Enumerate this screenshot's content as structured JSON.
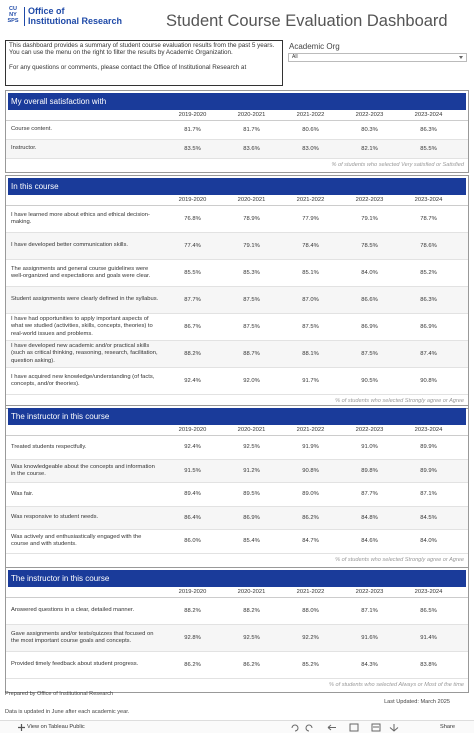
{
  "header": {
    "logo": [
      "CU",
      "NY",
      "SPS"
    ],
    "office": [
      "Office of",
      "Institutional Research"
    ],
    "title": "Student Course Evaluation Dashboard"
  },
  "intro": [
    "This dashboard provides a summary of student course evaluation results from the past 5 years. You can use the menu on the right to filter the results by Academic Organization.",
    "For any questions or comments, please contact the Office of Institutional Research at"
  ],
  "filter": {
    "label": "Academic Org",
    "value": "All"
  },
  "sections": [
    {
      "title": "My overall satisfaction with",
      "columns": [
        "2019-2020",
        "2020-2021",
        "2021-2022",
        "2022-2023",
        "2023-2024"
      ],
      "rows": [
        {
          "label": "Course content.",
          "values": [
            "81.7%",
            "81.7%",
            "80.6%",
            "80.3%",
            "86.3%"
          ]
        },
        {
          "label": "Instructor.",
          "values": [
            "83.5%",
            "83.6%",
            "83.0%",
            "82.1%",
            "85.5%"
          ]
        }
      ],
      "note": "% of students who selected Very  satisfied or Satisfied"
    },
    {
      "title": "In this course",
      "columns": [
        "2019-2020",
        "2020-2021",
        "2021-2022",
        "2022-2023",
        "2023-2024"
      ],
      "rows": [
        {
          "label": "I have learned more about ethics and ethical decision-making.",
          "values": [
            "76.8%",
            "78.9%",
            "77.9%",
            "79.1%",
            "78.7%"
          ]
        },
        {
          "label": "I have developed better communication skills.",
          "values": [
            "77.4%",
            "79.1%",
            "78.4%",
            "78.5%",
            "78.6%"
          ]
        },
        {
          "label": "The assignments and general course guidelines were well-organized and expectations and goals were clear.",
          "values": [
            "85.5%",
            "85.3%",
            "85.1%",
            "84.0%",
            "85.2%"
          ]
        },
        {
          "label": "Student assignments were clearly defined in the syllabus.",
          "values": [
            "87.7%",
            "87.5%",
            "87.0%",
            "86.6%",
            "86.3%"
          ]
        },
        {
          "label": "I have had opportunities to apply important aspects of what we studied (activities, skills, concepts, theories) to real-world issues and problems.",
          "values": [
            "86.7%",
            "87.5%",
            "87.5%",
            "86.9%",
            "86.9%"
          ]
        },
        {
          "label": "I have developed new academic and/or practical skills (such as critical thinking, reasoning, research, facilitation, question asking).",
          "values": [
            "88.2%",
            "88.7%",
            "88.1%",
            "87.5%",
            "87.4%"
          ]
        },
        {
          "label": "I have acquired new knowledge/understanding (of facts, concepts, and/or theories).",
          "values": [
            "92.4%",
            "92.0%",
            "91.7%",
            "90.5%",
            "90.8%"
          ]
        }
      ],
      "note": "% of students who selected Strongly agree or Agree"
    },
    {
      "title": "The instructor in this course",
      "columns": [
        "2019-2020",
        "2020-2021",
        "2021-2022",
        "2022-2023",
        "2023-2024"
      ],
      "rows": [
        {
          "label": "Treated students respectfully.",
          "values": [
            "92.4%",
            "92.5%",
            "91.9%",
            "91.0%",
            "89.9%"
          ]
        },
        {
          "label": "Was knowledgeable about the concepts and information in the course.",
          "values": [
            "91.5%",
            "91.2%",
            "90.8%",
            "89.8%",
            "89.9%"
          ]
        },
        {
          "label": "Was fair.",
          "values": [
            "89.4%",
            "89.5%",
            "89.0%",
            "87.7%",
            "87.1%"
          ]
        },
        {
          "label": "Was responsive to student needs.",
          "values": [
            "86.4%",
            "86.9%",
            "86.2%",
            "84.8%",
            "84.5%"
          ]
        },
        {
          "label": "Was actively and enthusiastically engaged with the course and with students.",
          "values": [
            "86.0%",
            "85.4%",
            "84.7%",
            "84.6%",
            "84.0%"
          ]
        }
      ],
      "note": "% of students who selected Strongly agree or Agree"
    },
    {
      "title": "The instructor in this course",
      "columns": [
        "2019-2020",
        "2020-2021",
        "2021-2022",
        "2022-2023",
        "2023-2024"
      ],
      "rows": [
        {
          "label": "Answered questions in a clear, detailed manner.",
          "values": [
            "88.2%",
            "88.2%",
            "88.0%",
            "87.1%",
            "86.5%"
          ]
        },
        {
          "label": "Gave assignments and/or tests/quizzes that focused on the most important course goals and concepts.",
          "values": [
            "92.8%",
            "92.5%",
            "92.2%",
            "91.6%",
            "91.4%"
          ]
        },
        {
          "label": "Provided timely feedback about student progress.",
          "values": [
            "86.2%",
            "86.2%",
            "85.2%",
            "84.3%",
            "83.8%"
          ]
        }
      ],
      "note": "% of students who selected Always or Most of the time"
    }
  ],
  "footer": {
    "prepared": "Prepared by Office of Institutional Research",
    "updated": "Last Updated: March 2025",
    "data_note": "Data is updated in June after each academic year.",
    "toolbar": "View on Tableau Public",
    "share": "Share"
  }
}
